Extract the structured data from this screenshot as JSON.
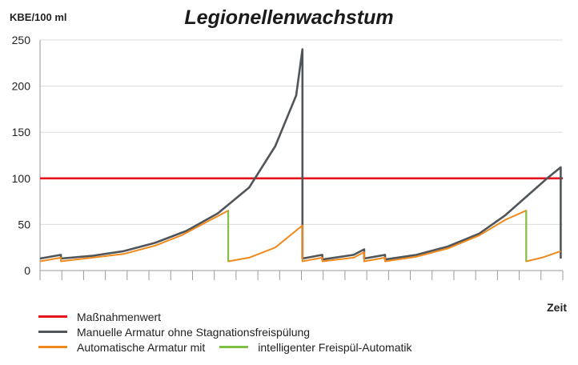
{
  "chart_data": {
    "type": "line",
    "title": "Legionellenwachstum",
    "ylabel": "KBE/100 ml",
    "xlabel": "Zeit",
    "ylim": [
      0,
      250
    ],
    "yticks": [
      "0",
      "50",
      "100",
      "150",
      "200",
      "250"
    ],
    "x_range": [
      0,
      100
    ],
    "grid": true,
    "legend_position": "bottom",
    "series": [
      {
        "name": "Maßnahmenwert",
        "color": "#e3141b",
        "points": [
          [
            0,
            100
          ],
          [
            100,
            100
          ]
        ]
      },
      {
        "name": "Manuelle Armatur ohne Stagnationsfreispülung",
        "color": "#505559",
        "points": [
          [
            0,
            13
          ],
          [
            4,
            17
          ],
          [
            4,
            13
          ],
          [
            10,
            16
          ],
          [
            16,
            21
          ],
          [
            22,
            30
          ],
          [
            28,
            43
          ],
          [
            34,
            62
          ],
          [
            40,
            90
          ],
          [
            45,
            135
          ],
          [
            49,
            190
          ],
          [
            50.2,
            240
          ],
          [
            50.2,
            13
          ],
          [
            54,
            17
          ],
          [
            54,
            12
          ],
          [
            60,
            17
          ],
          [
            62,
            23
          ],
          [
            62,
            13
          ],
          [
            66,
            17
          ],
          [
            66,
            12
          ],
          [
            72,
            17
          ],
          [
            78,
            26
          ],
          [
            84,
            40
          ],
          [
            89,
            60
          ],
          [
            94,
            85
          ],
          [
            97,
            100
          ],
          [
            99.6,
            112
          ],
          [
            99.6,
            13
          ]
        ]
      },
      {
        "name": "Automatische Armatur mit",
        "color": "#f08a1c",
        "points": [
          [
            0,
            10
          ],
          [
            4,
            14
          ],
          [
            4,
            10
          ],
          [
            10,
            14
          ],
          [
            16,
            18
          ],
          [
            22,
            27
          ],
          [
            27,
            38
          ],
          [
            32,
            53
          ],
          [
            36,
            65
          ],
          [
            36,
            10
          ],
          [
            40,
            14
          ],
          [
            45,
            25
          ],
          [
            50.2,
            49
          ],
          [
            50.2,
            10
          ],
          [
            54,
            14
          ],
          [
            54,
            10
          ],
          [
            60,
            14
          ],
          [
            62,
            20
          ],
          [
            62,
            10
          ],
          [
            66,
            14
          ],
          [
            66,
            10
          ],
          [
            72,
            15
          ],
          [
            78,
            24
          ],
          [
            84,
            38
          ],
          [
            89,
            55
          ],
          [
            93,
            65
          ],
          [
            93,
            10
          ],
          [
            96,
            14
          ],
          [
            99.6,
            21
          ]
        ]
      },
      {
        "name": "intelligenter Freispül-Automatik",
        "color": "#7dc242",
        "points": [
          [
            36,
            65
          ],
          [
            36,
            10
          ],
          [
            93,
            65
          ],
          [
            93,
            10
          ]
        ]
      }
    ]
  },
  "legend": [
    {
      "label": "Maßnahmenwert",
      "color": "#e3141b"
    },
    {
      "label": "Manuelle Armatur ohne Stagnationsfreispülung",
      "color": "#505559"
    },
    {
      "label": "Automatische Armatur mit",
      "color": "#f08a1c",
      "label2": "intelligenter Freispül-Automatik",
      "color2": "#7dc242"
    }
  ]
}
